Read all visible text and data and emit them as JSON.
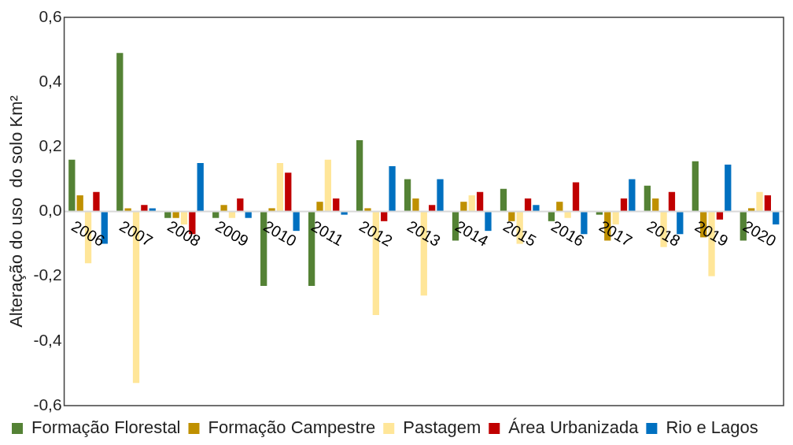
{
  "chart_data": {
    "type": "bar",
    "ylabel": "Alteração do uso  do solo Km²",
    "categories": [
      "2006",
      "2007",
      "2008",
      "2009",
      "2010",
      "2011",
      "2012",
      "2013",
      "2014",
      "2015",
      "2016",
      "2017",
      "2018",
      "2019",
      "2020"
    ],
    "series": [
      {
        "name": "Formação Florestal",
        "color": "#548235",
        "values": [
          0.16,
          0.49,
          -0.02,
          -0.02,
          -0.23,
          -0.23,
          0.22,
          0.1,
          -0.09,
          0.07,
          -0.03,
          -0.01,
          0.08,
          0.155,
          -0.09
        ]
      },
      {
        "name": "Formação Campestre",
        "color": "#bf9000",
        "values": [
          0.05,
          0.01,
          -0.02,
          0.02,
          0.01,
          0.03,
          0.01,
          0.04,
          0.03,
          -0.03,
          0.03,
          -0.09,
          0.04,
          -0.08,
          0.01
        ]
      },
      {
        "name": "Pastagem",
        "color": "#ffe699",
        "values": [
          -0.16,
          -0.53,
          -0.04,
          -0.02,
          0.15,
          0.16,
          -0.32,
          -0.26,
          0.05,
          -0.1,
          -0.02,
          -0.04,
          -0.11,
          -0.2,
          0.06
        ]
      },
      {
        "name": "Área Urbanizada",
        "color": "#c00000",
        "values": [
          0.06,
          0.02,
          -0.07,
          0.04,
          0.12,
          0.04,
          -0.03,
          0.02,
          0.06,
          0.04,
          0.09,
          0.04,
          0.06,
          -0.025,
          0.05
        ]
      },
      {
        "name": "Rio e Lagos",
        "color": "#0070c0",
        "values": [
          -0.1,
          0.01,
          0.15,
          -0.02,
          -0.06,
          -0.01,
          0.14,
          0.1,
          -0.06,
          0.02,
          -0.07,
          0.1,
          -0.07,
          0.145,
          -0.04
        ]
      }
    ],
    "ylim": [
      -0.6,
      0.6
    ],
    "yticks": [
      {
        "value": -0.6,
        "label": "-0,6"
      },
      {
        "value": -0.4,
        "label": "-0,4"
      },
      {
        "value": -0.2,
        "label": "-0,2"
      },
      {
        "value": 0,
        "label": "0,0"
      },
      {
        "value": 0.2,
        "label": "0,2"
      },
      {
        "value": 0.4,
        "label": "0,4"
      },
      {
        "value": 0.6,
        "label": "0,6"
      }
    ],
    "grid": false,
    "legend": "bottom"
  }
}
